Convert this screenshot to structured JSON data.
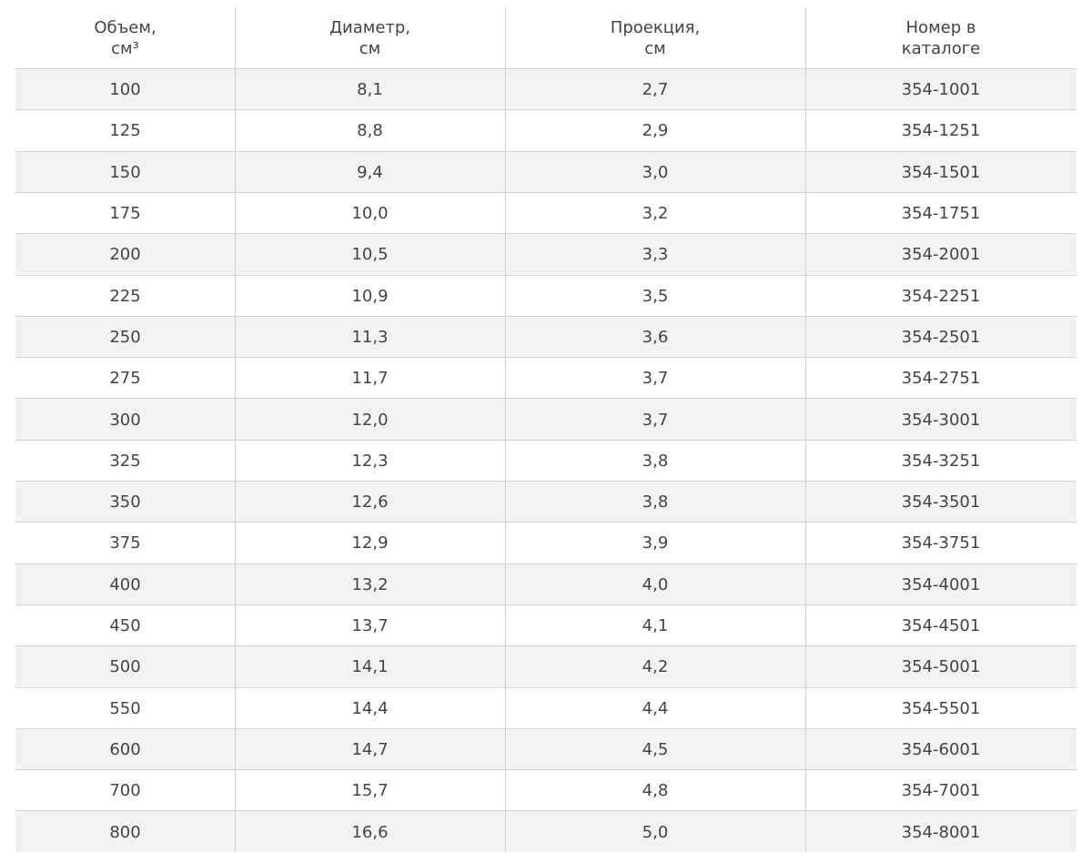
{
  "table": {
    "header": [
      [
        "Объем,",
        "см³"
      ],
      [
        "Диаметр,",
        "см"
      ],
      [
        "Проекция,",
        "см"
      ],
      [
        "Номер в",
        "каталоге"
      ]
    ],
    "rows": [
      [
        "100",
        "8,1",
        "2,7",
        "354-1001"
      ],
      [
        "125",
        "8,8",
        "2,9",
        "354-1251"
      ],
      [
        "150",
        "9,4",
        "3,0",
        "354-1501"
      ],
      [
        "175",
        "10,0",
        "3,2",
        "354-1751"
      ],
      [
        "200",
        "10,5",
        "3,3",
        "354-2001"
      ],
      [
        "225",
        "10,9",
        "3,5",
        "354-2251"
      ],
      [
        "250",
        "11,3",
        "3,6",
        "354-2501"
      ],
      [
        "275",
        "11,7",
        "3,7",
        "354-2751"
      ],
      [
        "300",
        "12,0",
        "3,7",
        "354-3001"
      ],
      [
        "325",
        "12,3",
        "3,8",
        "354-3251"
      ],
      [
        "350",
        "12,6",
        "3,8",
        "354-3501"
      ],
      [
        "375",
        "12,9",
        "3,9",
        "354-3751"
      ],
      [
        "400",
        "13,2",
        "4,0",
        "354-4001"
      ],
      [
        "450",
        "13,7",
        "4,1",
        "354-4501"
      ],
      [
        "500",
        "14,1",
        "4,2",
        "354-5001"
      ],
      [
        "550",
        "14,4",
        "4,4",
        "354-5501"
      ],
      [
        "600",
        "14,7",
        "4,5",
        "354-6001"
      ],
      [
        "700",
        "15,7",
        "4,8",
        "354-7001"
      ],
      [
        "800",
        "16,6",
        "5,0",
        "354-8001"
      ]
    ]
  }
}
